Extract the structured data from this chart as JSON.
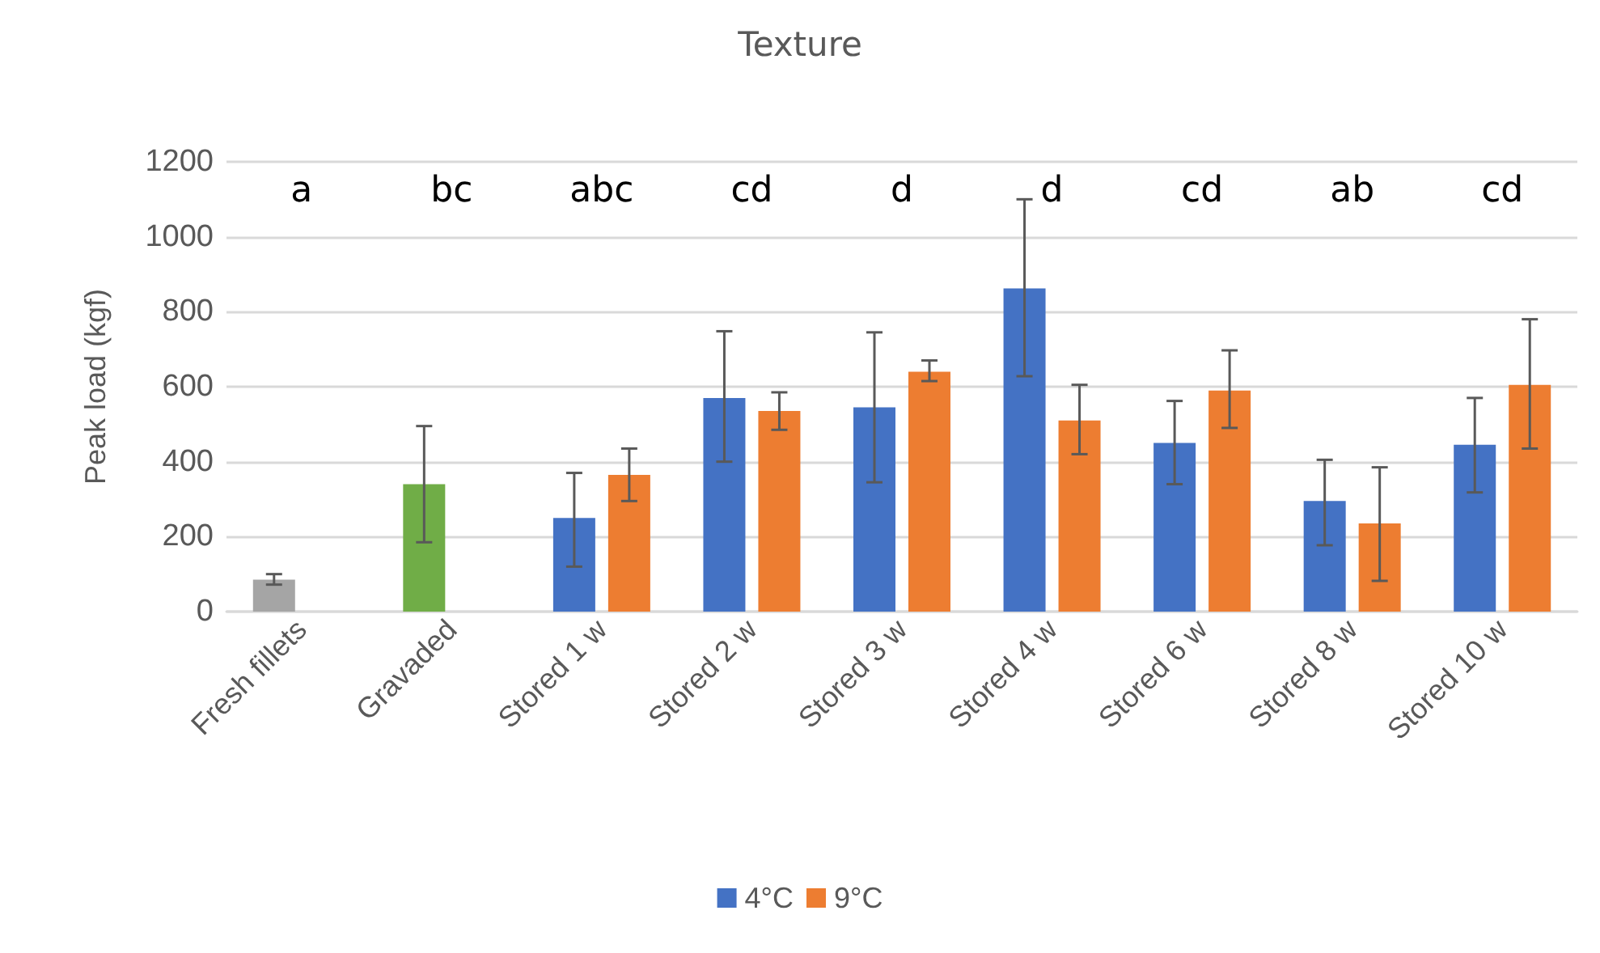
{
  "chart_data": {
    "type": "bar",
    "title": "Texture",
    "ylabel": "Peak load (kgf)",
    "categories": [
      "Fresh fillets",
      "Gravaded",
      "Stored 1 w",
      "Stored 2 w",
      "Stored 3 w",
      "Stored 4 w",
      "Stored 6 w",
      "Stored 8 w",
      "Stored 10 w"
    ],
    "series": [
      {
        "color": "#a5a5a5",
        "values": [
          85,
          null,
          null,
          null,
          null,
          null,
          null,
          null,
          null
        ],
        "errors": [
          [
            72,
            100
          ],
          null,
          null,
          null,
          null,
          null,
          null,
          null,
          null
        ]
      },
      {
        "color": "#70ad47",
        "values": [
          null,
          340,
          null,
          null,
          null,
          null,
          null,
          null,
          null
        ],
        "errors": [
          null,
          [
            185,
            495
          ],
          null,
          null,
          null,
          null,
          null,
          null,
          null
        ]
      },
      {
        "name": "4°C",
        "color": "#4472c4",
        "values": [
          null,
          null,
          250,
          570,
          545,
          862,
          450,
          295,
          445
        ],
        "errors": [
          null,
          null,
          [
            120,
            370
          ],
          [
            400,
            748
          ],
          [
            345,
            745
          ],
          [
            628,
            1100
          ],
          [
            340,
            562
          ],
          [
            177,
            405
          ],
          [
            318,
            570
          ]
        ]
      },
      {
        "name": "9°C",
        "color": "#ed7d31",
        "values": [
          null,
          null,
          365,
          535,
          640,
          510,
          590,
          235,
          605
        ],
        "errors": [
          null,
          null,
          [
            295,
            435
          ],
          [
            485,
            585
          ],
          [
            615,
            670
          ],
          [
            420,
            605
          ],
          [
            490,
            697
          ],
          [
            82,
            385
          ],
          [
            435,
            780
          ]
        ]
      }
    ],
    "ylim": [
      0,
      1200
    ],
    "yticks": [
      0,
      200,
      400,
      600,
      800,
      1000,
      1200
    ],
    "grid": "y",
    "legend": "bottom",
    "annotations": [
      "a",
      "bc",
      "abc",
      "cd",
      "d",
      "d",
      "cd",
      "ab",
      "cd"
    ]
  }
}
